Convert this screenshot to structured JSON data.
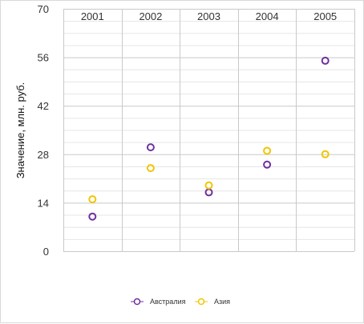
{
  "chart_data": {
    "type": "scatter",
    "title": "",
    "xlabel": "",
    "ylabel": "Значение, млн. руб.",
    "categories": [
      "2001",
      "2002",
      "2003",
      "2004",
      "2005"
    ],
    "ylim": [
      0,
      70
    ],
    "y_ticks": [
      0,
      14,
      28,
      42,
      56,
      70
    ],
    "y_minor_step": 3.5,
    "x_axis_position": "top",
    "grid": true,
    "legend_position": "bottom",
    "series": [
      {
        "name": "Австралия",
        "color": "#7030a0",
        "marker": "circle-open",
        "values": [
          10,
          30,
          17,
          25,
          55
        ]
      },
      {
        "name": "Азия",
        "color": "#f2c500",
        "marker": "circle-open",
        "values": [
          15,
          24,
          19,
          29,
          28
        ]
      }
    ]
  }
}
